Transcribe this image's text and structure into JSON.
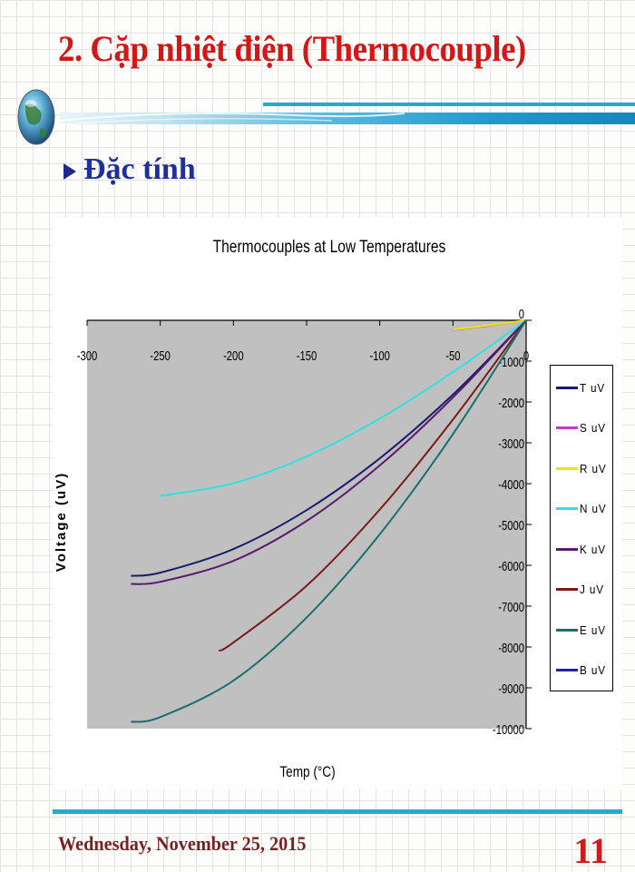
{
  "slide": {
    "title": "2. Cặp nhiệt điện (Thermocouple)",
    "bullet": "Đặc tính",
    "footer_date": "Wednesday, November 25, 2015",
    "page_number": "11"
  },
  "colors": {
    "title": "#d41616",
    "bullet": "#1f2f9c",
    "accent_bar": "#29a9d6",
    "footer_date": "#7a2024",
    "page_number": "#cc1c1c",
    "plot_area": "#c0c0c0"
  },
  "icons": {
    "logo": "globe-icon",
    "bullet": "triangle-bullet-icon"
  },
  "chart_data": {
    "type": "line",
    "title": "Thermocouples at Low Temperatures",
    "xlabel": "Temp (°C)",
    "ylabel": "Voltage (uV)",
    "xlim": [
      -300,
      0
    ],
    "ylim": [
      -10000,
      0
    ],
    "x_ticks": [
      "-300",
      "-250",
      "-200",
      "-150",
      "-100",
      "-50",
      "0"
    ],
    "y_ticks": [
      "0",
      "-1000",
      "-2000",
      "-3000",
      "-4000",
      "-5000",
      "-6000",
      "-7000",
      "-8000",
      "-9000",
      "-10000"
    ],
    "grid": false,
    "legend_position": "right",
    "series": [
      {
        "name": "T uV",
        "color": "#1a1a6e",
        "x": [
          -270,
          -250,
          -200,
          -150,
          -100,
          -50,
          0
        ],
        "values": [
          -6258,
          -6180,
          -5603,
          -4648,
          -3379,
          -1819,
          0
        ]
      },
      {
        "name": "S uV",
        "color": "#cc33cc",
        "x": [
          -50,
          -25,
          0
        ],
        "values": [
          -236,
          -127,
          0
        ]
      },
      {
        "name": "R uV",
        "color": "#e8e800",
        "x": [
          -50,
          -25,
          0
        ],
        "values": [
          -226,
          -121,
          0
        ]
      },
      {
        "name": "N uV",
        "color": "#33e0e0",
        "x": [
          -250,
          -200,
          -150,
          -100,
          -50,
          0
        ],
        "values": [
          -4300,
          -3990,
          -3336,
          -2407,
          -1269,
          0
        ]
      },
      {
        "name": "K uV",
        "color": "#5a1a6e",
        "x": [
          -270,
          -250,
          -200,
          -150,
          -100,
          -50,
          0
        ],
        "values": [
          -6458,
          -6404,
          -5891,
          -4913,
          -3554,
          -1889,
          0
        ]
      },
      {
        "name": "J uV",
        "color": "#7a1a1a",
        "x": [
          -210,
          -200,
          -150,
          -100,
          -50,
          0
        ],
        "values": [
          -8095,
          -7890,
          -6500,
          -4633,
          -2431,
          0
        ]
      },
      {
        "name": "E uV",
        "color": "#1a6e6e",
        "x": [
          -270,
          -250,
          -200,
          -150,
          -100,
          -50,
          0
        ],
        "values": [
          -9835,
          -9718,
          -8825,
          -7279,
          -5237,
          -2787,
          0
        ]
      },
      {
        "name": "B uV",
        "color": "#2020a8",
        "x": [],
        "values": []
      }
    ]
  }
}
